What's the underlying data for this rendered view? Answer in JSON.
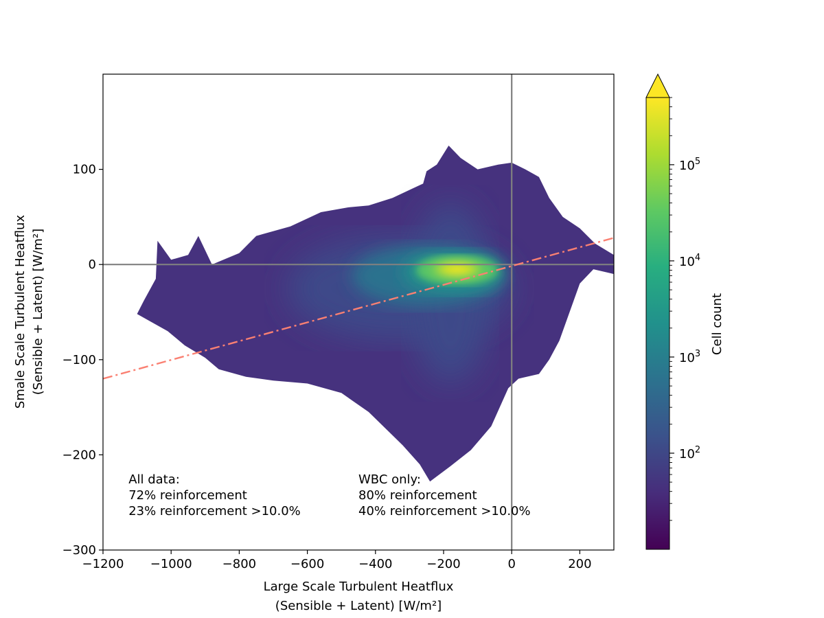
{
  "chart_data": {
    "type": "heatmap",
    "title": "",
    "xlabel_line1": "Large Scale Turbulent Heatflux",
    "xlabel_line2": "(Sensible + Latent) [W/m²]",
    "ylabel_line1": "Smale Scale Turbulent Heatflux",
    "ylabel_line2": "(Sensible + Latent) [W/m²]",
    "xlim": [
      -1200,
      300
    ],
    "ylim": [
      -300,
      200
    ],
    "xticks": [
      -1200,
      -1000,
      -800,
      -600,
      -400,
      -200,
      0,
      200
    ],
    "xtick_labels": [
      "−1200",
      "−1000",
      "−800",
      "−600",
      "−400",
      "−200",
      "0",
      "200"
    ],
    "yticks": [
      -300,
      -200,
      -100,
      0,
      100
    ],
    "ytick_labels": [
      "−300",
      "−200",
      "−100",
      "0",
      "100"
    ],
    "reference_lines": {
      "vertical_x": 0,
      "horizontal_y": 0,
      "color": "#808080"
    },
    "fit_line": {
      "style": "dash-dot",
      "color": "#fa8072",
      "points": [
        [
          -1200,
          -120
        ],
        [
          300,
          28
        ]
      ]
    },
    "density_shape": {
      "outline": [
        [
          -1040,
          25
        ],
        [
          -1000,
          5
        ],
        [
          -950,
          10
        ],
        [
          -920,
          30
        ],
        [
          -880,
          0
        ],
        [
          -800,
          12
        ],
        [
          -750,
          30
        ],
        [
          -650,
          40
        ],
        [
          -560,
          55
        ],
        [
          -480,
          60
        ],
        [
          -420,
          62
        ],
        [
          -350,
          70
        ],
        [
          -290,
          80
        ],
        [
          -260,
          85
        ],
        [
          -250,
          98
        ],
        [
          -220,
          105
        ],
        [
          -185,
          125
        ],
        [
          -150,
          112
        ],
        [
          -100,
          100
        ],
        [
          -40,
          105
        ],
        [
          0,
          107
        ],
        [
          40,
          100
        ],
        [
          80,
          92
        ],
        [
          110,
          70
        ],
        [
          150,
          50
        ],
        [
          200,
          38
        ],
        [
          245,
          22
        ],
        [
          300,
          10
        ],
        [
          300,
          -10
        ],
        [
          240,
          -5
        ],
        [
          200,
          -20
        ],
        [
          170,
          -50
        ],
        [
          140,
          -80
        ],
        [
          110,
          -100
        ],
        [
          80,
          -115
        ],
        [
          20,
          -120
        ],
        [
          -10,
          -130
        ],
        [
          -60,
          -170
        ],
        [
          -120,
          -195
        ],
        [
          -180,
          -212
        ],
        [
          -240,
          -228
        ],
        [
          -270,
          -210
        ],
        [
          -320,
          -190
        ],
        [
          -420,
          -155
        ],
        [
          -500,
          -135
        ],
        [
          -600,
          -125
        ],
        [
          -700,
          -122
        ],
        [
          -780,
          -118
        ],
        [
          -860,
          -110
        ],
        [
          -900,
          -98
        ],
        [
          -960,
          -85
        ],
        [
          -1010,
          -70
        ],
        [
          -1060,
          -60
        ],
        [
          -1100,
          -52
        ],
        [
          -1080,
          -38
        ],
        [
          -1045,
          -15
        ]
      ],
      "core_ellipse": {
        "cx": -160,
        "cy": -5,
        "rx": 115,
        "ry": 13
      }
    },
    "colorbar": {
      "label": "Cell count",
      "scale": "log",
      "range": [
        10,
        500000
      ],
      "extend": "max",
      "colormap": "viridis",
      "ticks": [
        {
          "value": 100,
          "base": "10",
          "exp": "2"
        },
        {
          "value": 1000,
          "base": "10",
          "exp": "3"
        },
        {
          "value": 10000,
          "base": "10",
          "exp": "4"
        },
        {
          "value": 100000,
          "base": "10",
          "exp": "5"
        }
      ]
    },
    "annotations": {
      "all_data": {
        "title": "All data:",
        "line1": "72% reinforcement",
        "line2": "23% reinforcement >10.0%",
        "anchor": [
          -1125,
          -230
        ]
      },
      "wbc_only": {
        "title": "WBC only:",
        "line1": "80% reinforcement",
        "line2": "40% reinforcement >10.0%",
        "anchor": [
          -450,
          -230
        ]
      }
    }
  }
}
